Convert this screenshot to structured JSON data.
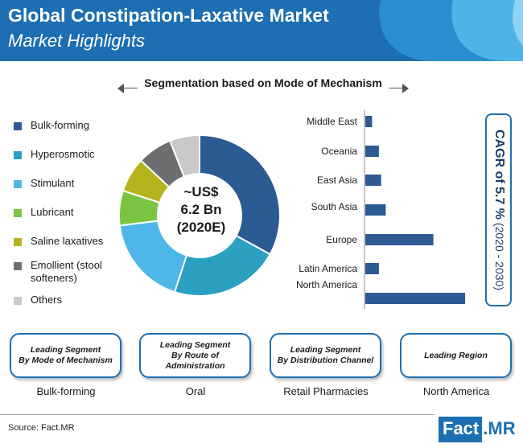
{
  "header": {
    "title": "Global Constipation-Laxative Market",
    "subtitle": "Market Highlights"
  },
  "segmentation_label": "Segmentation based on Mode of Mechanism",
  "donut_center": {
    "line1": "~US$",
    "line2": "6.2 Bn",
    "line3": "(2020E)"
  },
  "cagr": {
    "prefix": "CAGR of 5.7 %",
    "suffix": "(2020 - 2030)"
  },
  "highlights": [
    {
      "title_line1": "Leading Segment",
      "title_line2": "By Mode of Mechanism",
      "value": "Bulk-forming"
    },
    {
      "title_line1": "Leading Segment",
      "title_line2": "By Route of Administration",
      "value": "Oral"
    },
    {
      "title_line1": "Leading Segment",
      "title_line2": "By Distribution Channel",
      "value": "Retail Pharmacies"
    },
    {
      "title_line1": "Leading Region",
      "title_line2": "",
      "value": "North America"
    }
  ],
  "footer": {
    "source": "Source: Fact.MR",
    "logo_left": "Fact",
    "logo_right": ".MR"
  },
  "colors": {
    "brand_blue": "#1d6fb2",
    "bar": "#2b5b92"
  },
  "chart_data": [
    {
      "type": "pie",
      "title": "Segmentation based on Mode of Mechanism",
      "categories": [
        "Bulk-forming",
        "Hyperosmotic",
        "Stimulant",
        "Lubricant",
        "Saline laxatives",
        "Emollient (stool softeners)",
        "Others"
      ],
      "values": [
        33,
        22,
        18,
        7,
        7,
        7,
        6
      ],
      "colors": [
        "#2b5b92",
        "#2ba0c1",
        "#4db8e8",
        "#7bc442",
        "#b5b41c",
        "#6d6e70",
        "#c9c9c9"
      ],
      "donut": true,
      "center_label": "~US$ 6.2 Bn (2020E)"
    },
    {
      "type": "bar",
      "orientation": "horizontal",
      "categories": [
        "Middle East",
        "Oceania",
        "East Asia",
        "South Asia",
        "Europe",
        "Latin America",
        "North America"
      ],
      "values": [
        3,
        6,
        7,
        9,
        30,
        6,
        44
      ],
      "xlim": [
        0,
        50
      ],
      "grid": false,
      "xlabel": "",
      "ylabel": ""
    }
  ]
}
